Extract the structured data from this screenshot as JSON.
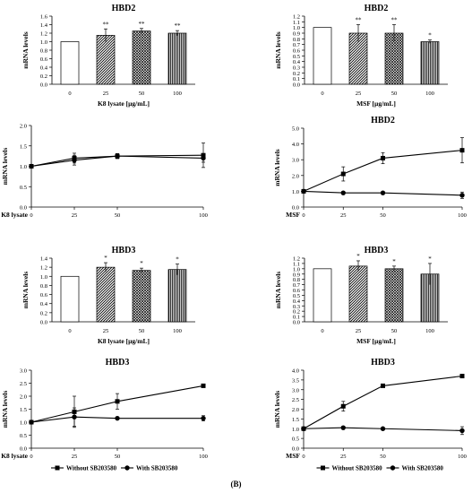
{
  "figure_label": "(B)",
  "chart_data": [
    {
      "type": "bar",
      "title": "HBD2",
      "xlabel": "K8 lysate [µg/mL]",
      "ylabel": "mRNA levels",
      "ylim": [
        0,
        1.6
      ],
      "yticks": [
        "0.0",
        "0.2",
        "0.4",
        "0.6",
        "0.8",
        "1.0",
        "1.2",
        "1.4",
        "1.6"
      ],
      "categories": [
        "0",
        "25",
        "50",
        "100"
      ],
      "values": [
        1.0,
        1.15,
        1.25,
        1.2
      ],
      "errors": [
        0,
        0.15,
        0.06,
        0.06
      ],
      "annotations": [
        "",
        "**",
        "**",
        "**"
      ],
      "patterns": [
        "white",
        "diag",
        "cross",
        "vert"
      ]
    },
    {
      "type": "bar",
      "title": "HBD2",
      "xlabel": "MSF [µg/mL]",
      "ylabel": "mRNA levels",
      "ylim": [
        0,
        1.2
      ],
      "yticks": [
        "0.0",
        "0.1",
        "0.2",
        "0.3",
        "0.4",
        "0.5",
        "0.6",
        "0.7",
        "0.8",
        "0.9",
        "1.0",
        "1.1",
        "1.2"
      ],
      "categories": [
        "0",
        "25",
        "50",
        "100"
      ],
      "values": [
        1.0,
        0.9,
        0.9,
        0.75
      ],
      "errors": [
        0,
        0.15,
        0.15,
        0.03
      ],
      "annotations": [
        "",
        "**",
        "**",
        "*"
      ],
      "patterns": [
        "white",
        "diag",
        "cross",
        "vert"
      ]
    },
    {
      "type": "line",
      "title": "",
      "xlabel": "K8 lysate",
      "ylabel": "mRNA levels",
      "ylim": [
        0,
        2.0
      ],
      "yticks": [
        "0.0",
        "0.5",
        "1.0",
        "1.5",
        "2.0"
      ],
      "x": [
        0,
        25,
        50,
        100
      ],
      "xticks": [
        "0",
        "25",
        "50",
        "100"
      ],
      "series": [
        {
          "name": "Without SB203580",
          "marker": "square",
          "values": [
            1.0,
            1.2,
            1.25,
            1.27
          ],
          "errors": [
            0.02,
            0.12,
            0.06,
            0.3
          ]
        },
        {
          "name": "With SB203580",
          "marker": "circle",
          "values": [
            1.0,
            1.15,
            1.25,
            1.2
          ],
          "errors": [
            0.02,
            0.12,
            0.06,
            0.1
          ]
        }
      ]
    },
    {
      "type": "line",
      "title": "HBD2",
      "xlabel": "MSF",
      "ylabel": "mRNA levels",
      "ylim": [
        0,
        5.0
      ],
      "yticks": [
        "0.0",
        "1.0",
        "2.0",
        "3.0",
        "4.0",
        "5.0"
      ],
      "x": [
        0,
        25,
        50,
        100
      ],
      "xticks": [
        "0",
        "25",
        "50",
        "100"
      ],
      "series": [
        {
          "name": "Without SB203580",
          "marker": "square",
          "values": [
            1.0,
            2.1,
            3.1,
            3.6
          ],
          "errors": [
            0.05,
            0.45,
            0.35,
            0.8
          ]
        },
        {
          "name": "With SB203580",
          "marker": "circle",
          "values": [
            1.0,
            0.9,
            0.9,
            0.75
          ],
          "errors": [
            0.05,
            0.05,
            0.05,
            0.2
          ]
        }
      ]
    },
    {
      "type": "bar",
      "title": "HBD3",
      "xlabel": "K8 lysate [µg/mL]",
      "ylabel": "mRNA levels",
      "ylim": [
        0,
        1.4
      ],
      "yticks": [
        "0.0",
        "0.2",
        "0.4",
        "0.6",
        "0.8",
        "1.0",
        "1.2",
        "1.4"
      ],
      "categories": [
        "0",
        "25",
        "50",
        "100"
      ],
      "values": [
        1.0,
        1.2,
        1.13,
        1.15
      ],
      "errors": [
        0,
        0.1,
        0.05,
        0.12
      ],
      "annotations": [
        "",
        "*",
        "*",
        "*"
      ],
      "patterns": [
        "white",
        "diag",
        "cross",
        "vert"
      ]
    },
    {
      "type": "bar",
      "title": "HBD3",
      "xlabel": "MSF [µg/mL]",
      "ylabel": "mRNA levels",
      "ylim": [
        0,
        1.2
      ],
      "yticks": [
        "0.0",
        "0.1",
        "0.2",
        "0.3",
        "0.4",
        "0.5",
        "0.6",
        "0.7",
        "0.8",
        "0.9",
        "1.0",
        "1.1",
        "1.2"
      ],
      "categories": [
        "0",
        "25",
        "50",
        "100"
      ],
      "values": [
        1.0,
        1.05,
        1.0,
        0.9
      ],
      "errors": [
        0,
        0.1,
        0.05,
        0.2
      ],
      "annotations": [
        "",
        "*",
        "*",
        "*"
      ],
      "patterns": [
        "white",
        "diag",
        "cross",
        "vert"
      ]
    },
    {
      "type": "line",
      "title": "HBD3",
      "xlabel": "K8 lysate",
      "ylabel": "mRNA levels",
      "ylim": [
        0,
        3.0
      ],
      "yticks": [
        "0.0",
        "0.5",
        "1.0",
        "1.5",
        "2.0",
        "2.5",
        "3.0"
      ],
      "x": [
        0,
        25,
        50,
        100
      ],
      "xticks": [
        "0",
        "25",
        "50",
        "100"
      ],
      "series": [
        {
          "name": "Without SB203580",
          "marker": "square",
          "values": [
            1.0,
            1.4,
            1.8,
            2.4
          ],
          "errors": [
            0.05,
            0.6,
            0.3,
            0.05
          ]
        },
        {
          "name": "With SB203580",
          "marker": "circle",
          "values": [
            1.0,
            1.2,
            1.15,
            1.15
          ],
          "errors": [
            0.05,
            0.35,
            0.05,
            0.1
          ]
        }
      ]
    },
    {
      "type": "line",
      "title": "HBD3",
      "xlabel": "MSF",
      "ylabel": "mRNA levels",
      "ylim": [
        0,
        4.0
      ],
      "yticks": [
        "0.0",
        "0.5",
        "1.0",
        "1.5",
        "2.0",
        "2.5",
        "3.0",
        "3.5",
        "4.0"
      ],
      "x": [
        0,
        25,
        50,
        100
      ],
      "xticks": [
        "0",
        "25",
        "50",
        "100"
      ],
      "series": [
        {
          "name": "Without SB203580",
          "marker": "square",
          "values": [
            1.0,
            2.15,
            3.2,
            3.7
          ],
          "errors": [
            0.05,
            0.25,
            0.05,
            0.05
          ]
        },
        {
          "name": "With SB203580",
          "marker": "circle",
          "values": [
            1.0,
            1.05,
            1.0,
            0.9
          ],
          "errors": [
            0.05,
            0.05,
            0.05,
            0.2
          ]
        }
      ]
    }
  ]
}
